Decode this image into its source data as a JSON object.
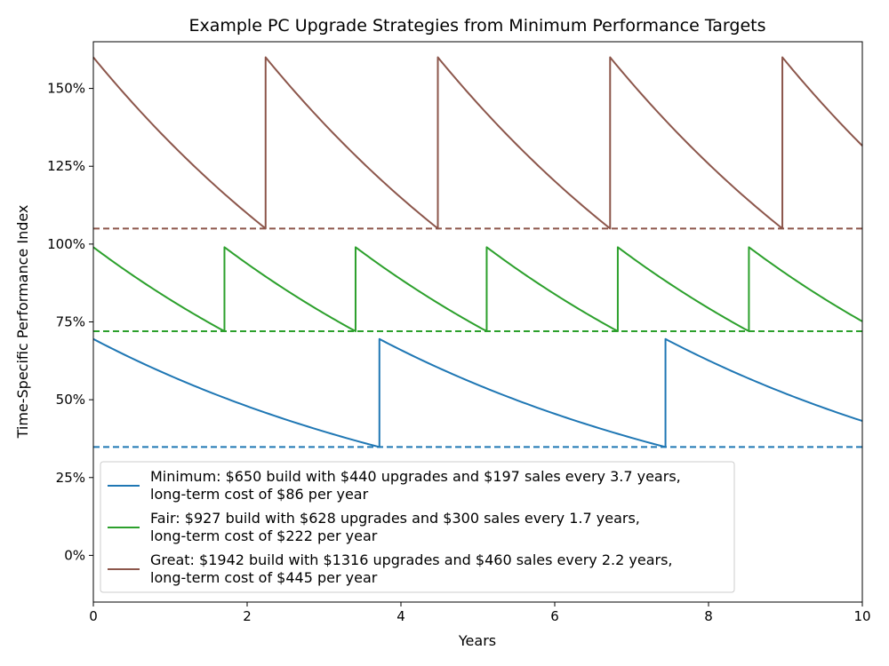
{
  "chart_data": {
    "type": "line",
    "title": "Example PC Upgrade Strategies from Minimum Performance Targets",
    "xlabel": "Years",
    "ylabel": "Time-Specific Performance Index",
    "xlim": [
      0,
      10
    ],
    "ylim": [
      -0.15,
      1.65
    ],
    "xticks": [
      0,
      2,
      4,
      6,
      8,
      10
    ],
    "xtick_labels": [
      "0",
      "2",
      "4",
      "6",
      "8",
      "10"
    ],
    "yticks": [
      0,
      0.25,
      0.5,
      0.75,
      1.0,
      1.25,
      1.5
    ],
    "ytick_labels": [
      "0%",
      "25%",
      "50%",
      "75%",
      "100%",
      "125%",
      "150%"
    ],
    "grid": false,
    "legend_position": "lower-left",
    "series": [
      {
        "name": "Minimum: $650 build with $440 upgrades and $197 sales every 3.7 years, long-term cost of $86 per year",
        "legend_lines": [
          "Minimum: $650 build with $440 upgrades and $197 sales every 3.7 years,",
          "long-term cost of $86 per year"
        ],
        "color": "#1f77b4",
        "start_value": 0.695,
        "min_threshold": 0.348,
        "cycle_years": 3.72,
        "upgrade_years": [
          3.72,
          7.44
        ],
        "end_value": 0.435
      },
      {
        "name": "Fair: $927 build with $628 upgrades and $300 sales every 1.7 years, long-term cost of $222 per year",
        "legend_lines": [
          "Fair: $927 build with $628 upgrades and $300 sales every 1.7 years,",
          "long-term cost of $222 per year"
        ],
        "color": "#2ca02c",
        "start_value": 0.99,
        "min_threshold": 0.72,
        "cycle_years": 1.705,
        "upgrade_years": [
          1.705,
          3.41,
          5.115,
          6.82,
          8.525
        ],
        "end_value": 0.755
      },
      {
        "name": "Great: $1942 build with $1316 upgrades and $460 sales every 2.2 years, long-term cost of $445 per year",
        "legend_lines": [
          "Great: $1942 build with $1316 upgrades and $460 sales every 2.2 years,",
          "long-term cost of $445 per year"
        ],
        "color": "#8c564b",
        "start_value": 1.6,
        "min_threshold": 1.05,
        "cycle_years": 2.24,
        "upgrade_years": [
          2.24,
          4.48,
          6.72,
          8.96
        ],
        "end_value": 1.318
      }
    ]
  }
}
